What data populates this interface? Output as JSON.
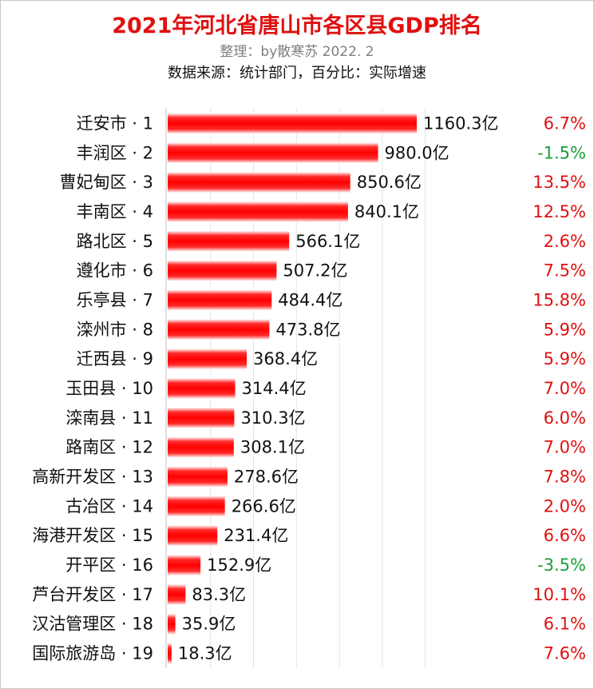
{
  "title": "2021年河北省唐山市各区县GDP排名",
  "subtitle": "整理：by散寒苏 2022. 2",
  "source_note": "数据来源：统计部门，百分比：实际增速",
  "colors": {
    "bar": "#ff0000",
    "positive_growth": "#e01010",
    "negative_growth": "#1a9e3a",
    "grid": "#e3e3e3",
    "axis": "#c0c0c0"
  },
  "chart_data": {
    "type": "bar",
    "orientation": "horizontal",
    "title": "2021年河北省唐山市各区县GDP排名",
    "grid": true,
    "categories": [
      "迁安市 · 1",
      "丰润区 · 2",
      "曹妃甸区 · 3",
      "丰南区 · 4",
      "路北区 · 5",
      "遵化市 · 6",
      "乐亭县 · 7",
      "滦州市 · 8",
      "迁西县 · 9",
      "玉田县 · 10",
      "滦南县 · 11",
      "路南区 · 12",
      "高新开发区 · 13",
      "古冶区 · 14",
      "海港开发区 · 15",
      "开平区 · 16",
      "芦台开发区 · 17",
      "汉沽管理区 · 18",
      "国际旅游岛 · 19"
    ],
    "values": [
      1160.3,
      980.0,
      850.6,
      840.1,
      566.1,
      507.2,
      484.4,
      473.8,
      368.4,
      314.4,
      310.3,
      308.1,
      278.6,
      266.6,
      231.4,
      152.9,
      83.3,
      35.9,
      18.3
    ],
    "value_labels": [
      "1160.3亿",
      "980.0亿",
      "850.6亿",
      "840.1亿",
      "566.1亿",
      "507.2亿",
      "484.4亿",
      "473.8亿",
      "368.4亿",
      "314.4亿",
      "310.3亿",
      "308.1亿",
      "278.6亿",
      "266.6亿",
      "231.4亿",
      "152.9亿",
      "83.3亿",
      "35.9亿",
      "18.3亿"
    ],
    "growth_labels": [
      "6.7%",
      "-1.5%",
      "13.5%",
      "12.5%",
      "2.6%",
      "7.5%",
      "15.8%",
      "5.9%",
      "5.9%",
      "7.0%",
      "6.0%",
      "7.0%",
      "7.8%",
      "2.0%",
      "6.6%",
      "-3.5%",
      "10.1%",
      "6.1%",
      "7.6%"
    ],
    "xlim": [
      0,
      1250
    ]
  }
}
